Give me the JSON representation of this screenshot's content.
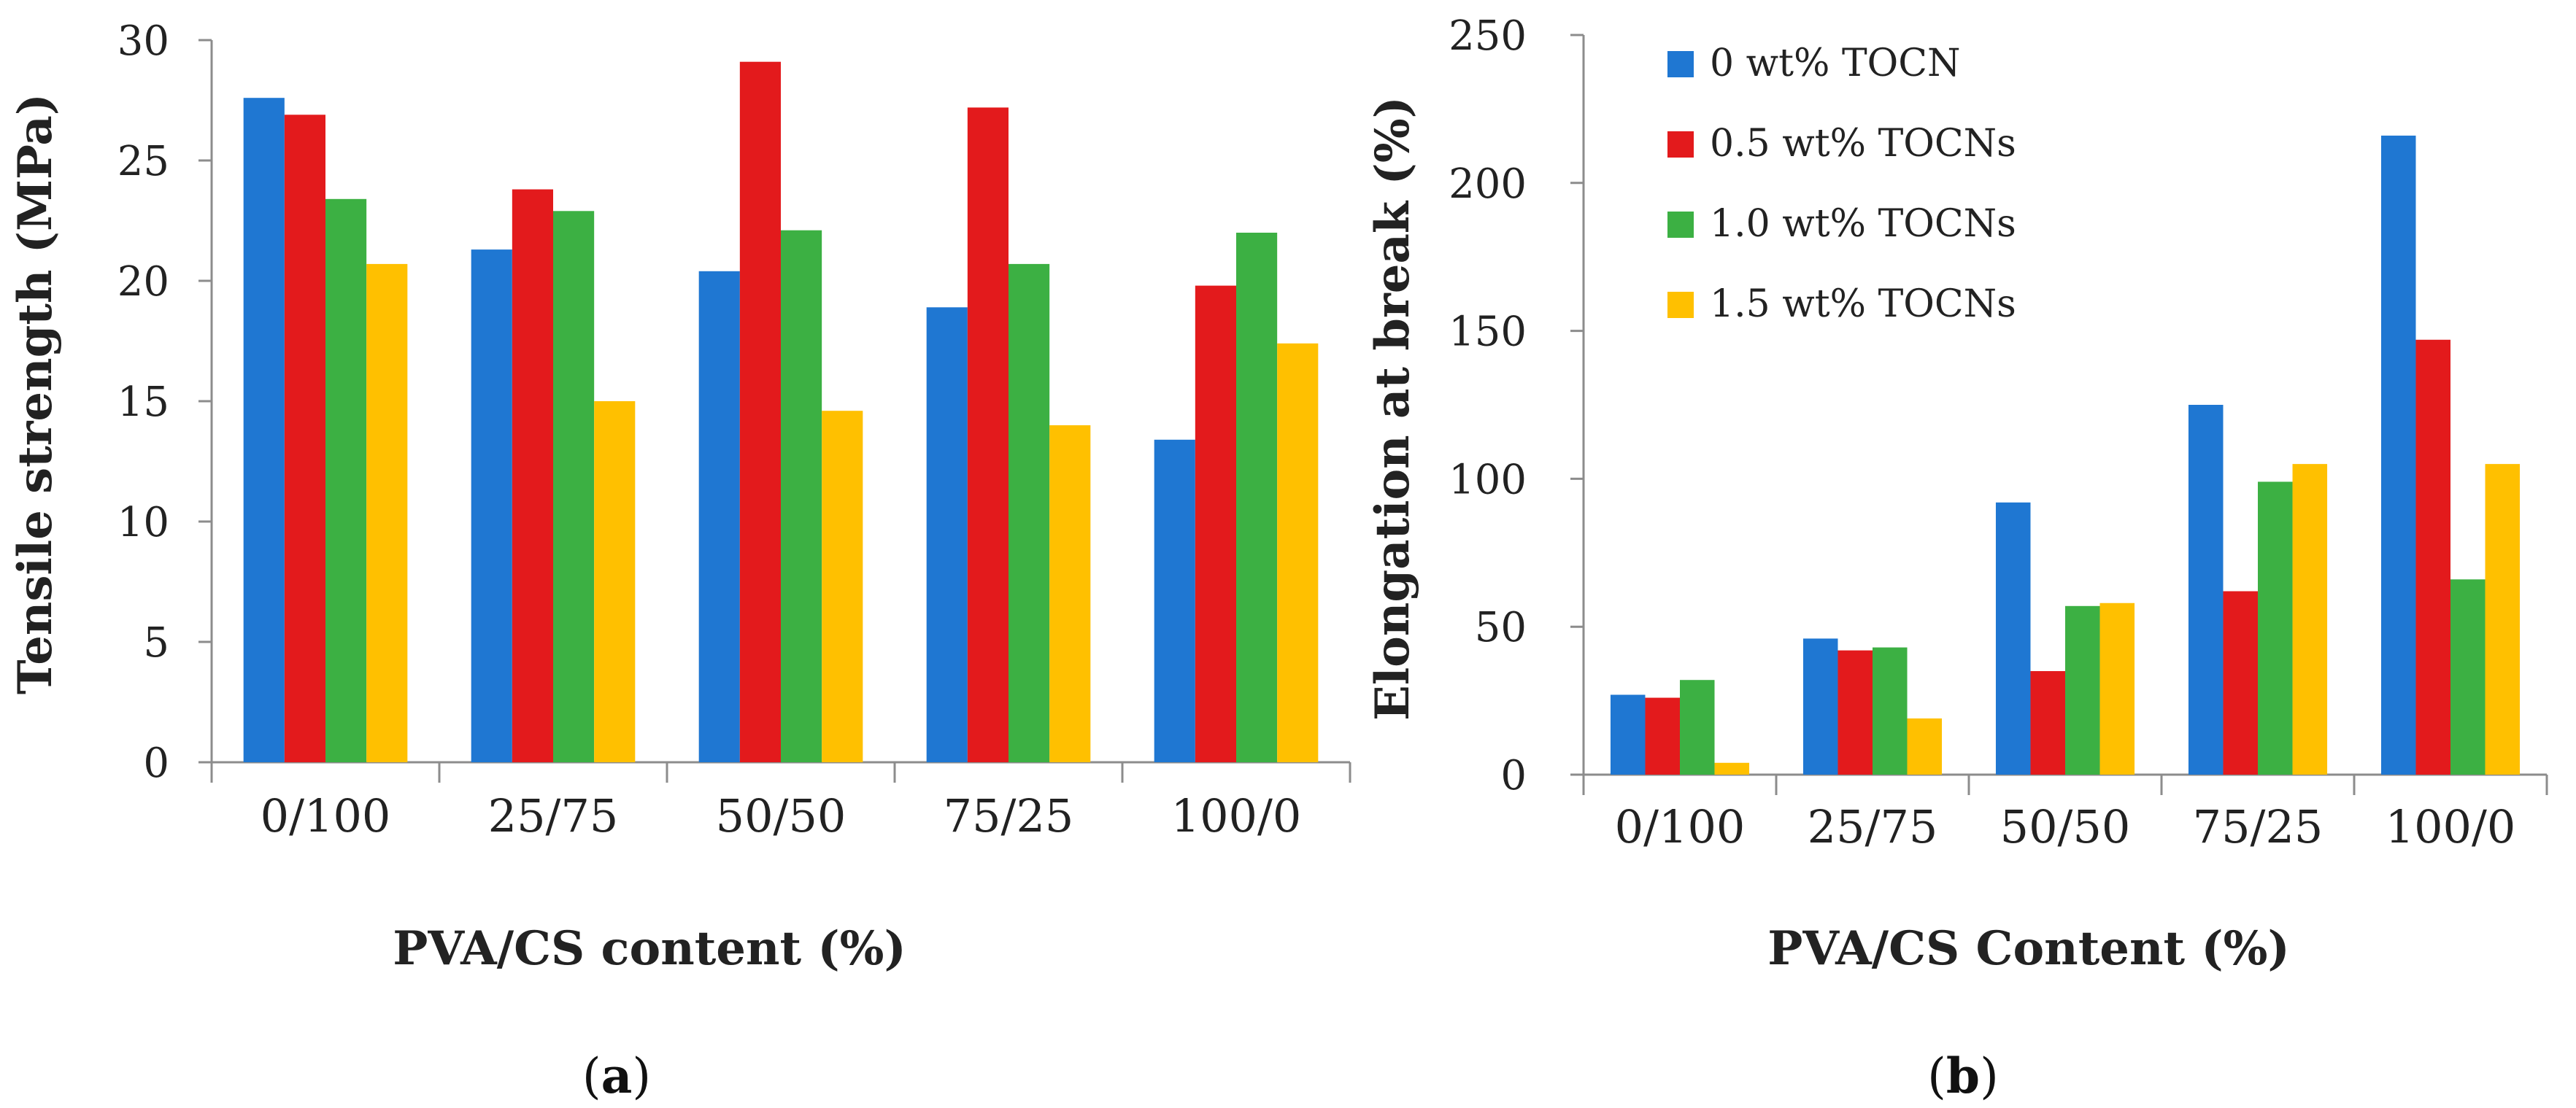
{
  "chart_data": [
    {
      "type": "bar",
      "panel_label": "a",
      "xlabel": "PVA/CS content (%)",
      "ylabel": "Tensile strength  (MPa)",
      "ylim": [
        0,
        30
      ],
      "yticks": [
        0,
        5,
        10,
        15,
        20,
        25,
        30
      ],
      "categories": [
        "0/100",
        "25/75",
        "50/50",
        "75/25",
        "100/0"
      ],
      "series": [
        {
          "name": "0 wt% TOCN",
          "color": "#1f77d2",
          "values": [
            27.6,
            21.3,
            20.4,
            18.9,
            13.4
          ]
        },
        {
          "name": "0.5 wt% TOCNs",
          "color": "#e31a1c",
          "values": [
            26.9,
            23.8,
            29.1,
            27.2,
            19.8
          ]
        },
        {
          "name": "1.0 wt% TOCNs",
          "color": "#3cb043",
          "values": [
            23.4,
            22.9,
            22.1,
            20.7,
            22.0
          ]
        },
        {
          "name": "1.5 wt% TOCNs",
          "color": "#ffc000",
          "values": [
            20.7,
            15.0,
            14.6,
            14.0,
            17.4
          ]
        }
      ],
      "legend": false,
      "grid": false
    },
    {
      "type": "bar",
      "panel_label": "b",
      "xlabel": "PVA/CS Content (%)",
      "ylabel": "Elongation at break (%)",
      "ylim": [
        0,
        250
      ],
      "yticks": [
        0,
        50,
        100,
        150,
        200,
        250
      ],
      "categories": [
        "0/100",
        "25/75",
        "50/50",
        "75/25",
        "100/0"
      ],
      "series": [
        {
          "name": "0 wt% TOCN",
          "color": "#1f77d2",
          "values": [
            27,
            46,
            92,
            125,
            216
          ]
        },
        {
          "name": "0.5 wt% TOCNs",
          "color": "#e31a1c",
          "values": [
            26,
            42,
            35,
            62,
            147
          ]
        },
        {
          "name": "1.0 wt% TOCNs",
          "color": "#3cb043",
          "values": [
            32,
            43,
            57,
            99,
            66
          ]
        },
        {
          "name": "1.5 wt% TOCNs",
          "color": "#ffc000",
          "values": [
            4,
            19,
            58,
            105,
            105
          ]
        }
      ],
      "legend": true,
      "legend_position": "top-left",
      "grid": false
    }
  ]
}
